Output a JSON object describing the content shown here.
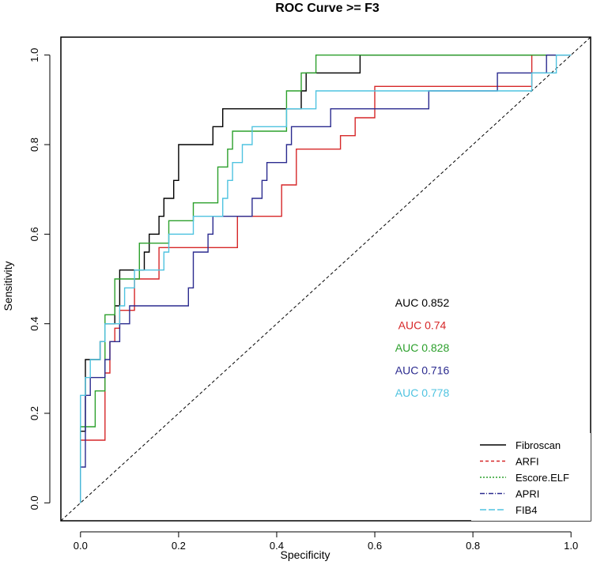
{
  "chart_data": {
    "type": "line",
    "title": "ROC Curve >= F3",
    "xlabel": "Specificity",
    "ylabel": "Sensitivity",
    "xlim": [
      -0.04,
      1.04
    ],
    "ylim": [
      -0.04,
      1.04
    ],
    "xticks": [
      "0.0",
      "0.2",
      "0.4",
      "0.6",
      "0.8",
      "1.0"
    ],
    "yticks": [
      "0.0",
      "0.2",
      "0.4",
      "0.6",
      "0.8",
      "1.0"
    ],
    "xtick_values": [
      0.0,
      0.2,
      0.4,
      0.6,
      0.8,
      1.0
    ],
    "ytick_values": [
      0.0,
      0.2,
      0.4,
      0.6,
      0.8,
      1.0
    ],
    "reference_line": "diagonal (0,0)-(1,1), dashed",
    "legend_position": "bottom-right",
    "series": [
      {
        "name": "Fibroscan",
        "color": "#000000",
        "legend_dash": "solid",
        "auc_label": "AUC 0.852",
        "x": [
          0.0,
          0.0,
          0.01,
          0.01,
          0.04,
          0.04,
          0.05,
          0.05,
          0.07,
          0.07,
          0.08,
          0.08,
          0.13,
          0.13,
          0.14,
          0.14,
          0.16,
          0.16,
          0.17,
          0.17,
          0.19,
          0.19,
          0.2,
          0.2,
          0.21,
          0.21,
          0.27,
          0.27,
          0.29,
          0.29,
          0.31,
          0.31,
          0.45,
          0.45,
          0.46,
          0.46,
          0.49,
          0.49,
          0.53,
          0.53,
          0.55,
          0.55,
          0.57,
          0.57,
          0.93,
          0.93,
          1.0
        ],
        "y": [
          0.0,
          0.16,
          0.16,
          0.32,
          0.32,
          0.36,
          0.36,
          0.4,
          0.4,
          0.44,
          0.44,
          0.52,
          0.52,
          0.56,
          0.56,
          0.6,
          0.6,
          0.64,
          0.64,
          0.68,
          0.68,
          0.72,
          0.72,
          0.8,
          0.8,
          0.8,
          0.8,
          0.84,
          0.84,
          0.88,
          0.88,
          0.88,
          0.88,
          0.92,
          0.92,
          0.96,
          0.96,
          0.96,
          0.96,
          0.96,
          0.96,
          0.96,
          0.96,
          1.0,
          1.0,
          1.0,
          1.0
        ]
      },
      {
        "name": "ARFI",
        "color": "#d62728",
        "legend_dash": "4,3",
        "auc_label": "AUC 0.74",
        "x": [
          0.0,
          0.0,
          0.05,
          0.05,
          0.06,
          0.06,
          0.07,
          0.07,
          0.08,
          0.08,
          0.11,
          0.11,
          0.16,
          0.16,
          0.32,
          0.32,
          0.34,
          0.34,
          0.41,
          0.41,
          0.44,
          0.44,
          0.53,
          0.53,
          0.56,
          0.56,
          0.59,
          0.59,
          0.6,
          0.6,
          0.65,
          0.65,
          0.92,
          0.92,
          1.0
        ],
        "y": [
          0.0,
          0.14,
          0.14,
          0.29,
          0.29,
          0.36,
          0.36,
          0.39,
          0.39,
          0.43,
          0.43,
          0.5,
          0.5,
          0.57,
          0.57,
          0.64,
          0.64,
          0.64,
          0.64,
          0.71,
          0.71,
          0.79,
          0.79,
          0.82,
          0.82,
          0.86,
          0.86,
          0.86,
          0.86,
          0.93,
          0.93,
          0.93,
          0.93,
          1.0,
          1.0
        ]
      },
      {
        "name": "Escore.ELF",
        "color": "#2ca02c",
        "legend_dash": "2,2",
        "auc_label": "AUC 0.828",
        "x": [
          0.0,
          0.0,
          0.03,
          0.03,
          0.05,
          0.05,
          0.07,
          0.07,
          0.12,
          0.12,
          0.18,
          0.18,
          0.23,
          0.23,
          0.28,
          0.28,
          0.3,
          0.3,
          0.31,
          0.31,
          0.42,
          0.42,
          0.45,
          0.45,
          0.48,
          0.48,
          1.0
        ],
        "y": [
          0.0,
          0.17,
          0.17,
          0.25,
          0.25,
          0.42,
          0.42,
          0.5,
          0.5,
          0.58,
          0.58,
          0.63,
          0.63,
          0.67,
          0.67,
          0.75,
          0.75,
          0.79,
          0.79,
          0.83,
          0.83,
          0.92,
          0.92,
          0.96,
          0.96,
          1.0,
          1.0
        ]
      },
      {
        "name": "APRI",
        "color": "#2b2b8f",
        "legend_dash": "6,2,1,2",
        "auc_label": "AUC 0.716",
        "x": [
          0.0,
          0.0,
          0.01,
          0.01,
          0.02,
          0.02,
          0.05,
          0.05,
          0.06,
          0.06,
          0.08,
          0.08,
          0.1,
          0.1,
          0.11,
          0.11,
          0.22,
          0.22,
          0.23,
          0.23,
          0.26,
          0.26,
          0.27,
          0.27,
          0.35,
          0.35,
          0.37,
          0.37,
          0.38,
          0.38,
          0.42,
          0.42,
          0.43,
          0.43,
          0.51,
          0.51,
          0.53,
          0.53,
          0.71,
          0.71,
          0.74,
          0.74,
          0.85,
          0.85,
          0.95,
          0.95,
          0.96,
          0.96,
          1.0
        ],
        "y": [
          0.0,
          0.08,
          0.08,
          0.24,
          0.24,
          0.28,
          0.28,
          0.32,
          0.32,
          0.36,
          0.36,
          0.4,
          0.4,
          0.44,
          0.44,
          0.44,
          0.44,
          0.48,
          0.48,
          0.56,
          0.56,
          0.6,
          0.6,
          0.64,
          0.64,
          0.68,
          0.68,
          0.72,
          0.72,
          0.76,
          0.76,
          0.8,
          0.8,
          0.84,
          0.84,
          0.88,
          0.88,
          0.88,
          0.88,
          0.92,
          0.92,
          0.92,
          0.92,
          0.96,
          0.96,
          1.0,
          1.0,
          1.0,
          1.0
        ]
      },
      {
        "name": "FIB4",
        "color": "#4fc3e0",
        "legend_dash": "8,3",
        "auc_label": "AUC 0.778",
        "x": [
          0.0,
          0.0,
          0.01,
          0.01,
          0.02,
          0.02,
          0.04,
          0.04,
          0.05,
          0.05,
          0.08,
          0.08,
          0.09,
          0.09,
          0.11,
          0.11,
          0.17,
          0.17,
          0.18,
          0.18,
          0.23,
          0.23,
          0.29,
          0.29,
          0.3,
          0.3,
          0.31,
          0.31,
          0.33,
          0.33,
          0.35,
          0.35,
          0.4,
          0.4,
          0.42,
          0.42,
          0.47,
          0.47,
          0.48,
          0.48,
          0.55,
          0.55,
          0.92,
          0.92,
          0.97,
          0.97,
          1.0
        ],
        "y": [
          0.0,
          0.24,
          0.24,
          0.28,
          0.28,
          0.32,
          0.32,
          0.36,
          0.36,
          0.4,
          0.4,
          0.44,
          0.44,
          0.48,
          0.48,
          0.52,
          0.52,
          0.56,
          0.56,
          0.6,
          0.6,
          0.64,
          0.64,
          0.68,
          0.68,
          0.72,
          0.72,
          0.76,
          0.76,
          0.8,
          0.8,
          0.84,
          0.84,
          0.84,
          0.84,
          0.88,
          0.88,
          0.88,
          0.88,
          0.92,
          0.92,
          0.92,
          0.92,
          0.96,
          0.96,
          1.0,
          1.0
        ]
      }
    ]
  }
}
